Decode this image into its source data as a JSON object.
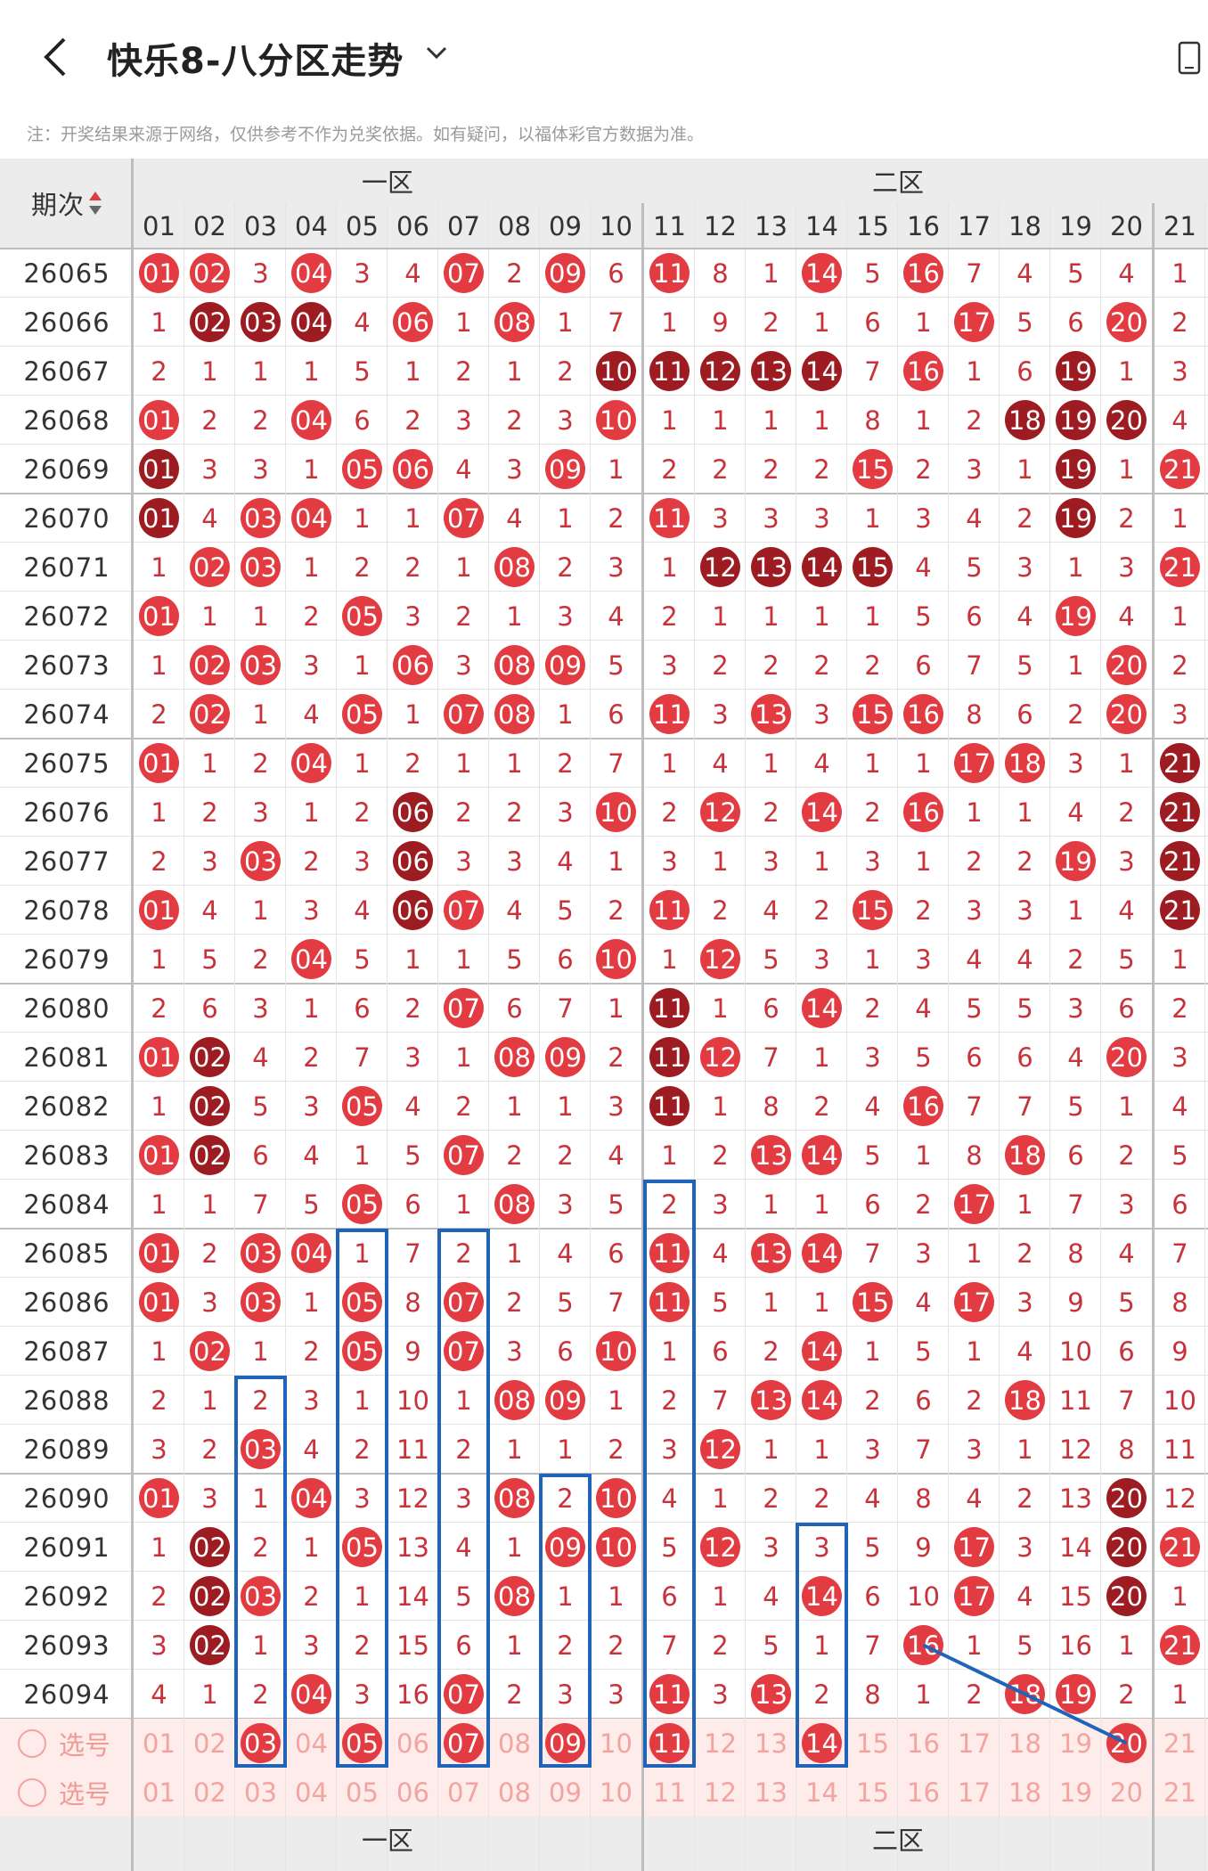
{
  "header": {
    "title": "快乐8-八分区走势",
    "notice": "注：开奖结果来源于网络，仅供参考不作为兑奖依据。如有疑问，以福体彩官方数据为准。"
  },
  "table": {
    "period_header": "期次",
    "zones": [
      "一区",
      "二区"
    ],
    "columns": [
      "01",
      "02",
      "03",
      "04",
      "05",
      "06",
      "07",
      "08",
      "09",
      "10",
      "11",
      "12",
      "13",
      "14",
      "15",
      "16",
      "17",
      "18",
      "19",
      "20",
      "21"
    ],
    "rows": [
      {
        "period": "26065",
        "cells": [
          "r:01",
          "r:02",
          "3",
          "r:04",
          "3",
          "4",
          "r:07",
          "2",
          "r:09",
          "6",
          "r:11",
          "8",
          "1",
          "r:14",
          "5",
          "r:16",
          "7",
          "4",
          "5",
          "4",
          "1"
        ]
      },
      {
        "period": "26066",
        "cells": [
          "1",
          "d:02",
          "d:03",
          "d:04",
          "4",
          "r:06",
          "1",
          "r:08",
          "1",
          "7",
          "1",
          "9",
          "2",
          "1",
          "6",
          "1",
          "r:17",
          "5",
          "6",
          "r:20",
          "2"
        ]
      },
      {
        "period": "26067",
        "cells": [
          "2",
          "1",
          "1",
          "1",
          "5",
          "1",
          "2",
          "1",
          "2",
          "d:10",
          "d:11",
          "d:12",
          "d:13",
          "d:14",
          "7",
          "r:16",
          "1",
          "6",
          "d:19",
          "1",
          "3"
        ]
      },
      {
        "period": "26068",
        "cells": [
          "r:01",
          "2",
          "2",
          "r:04",
          "6",
          "2",
          "3",
          "2",
          "3",
          "r:10",
          "1",
          "1",
          "1",
          "1",
          "8",
          "1",
          "2",
          "d:18",
          "d:19",
          "d:20",
          "4"
        ]
      },
      {
        "period": "26069",
        "cells": [
          "d:01",
          "3",
          "3",
          "1",
          "r:05",
          "r:06",
          "4",
          "3",
          "r:09",
          "1",
          "2",
          "2",
          "2",
          "2",
          "r:15",
          "2",
          "3",
          "1",
          "d:19",
          "1",
          "r:21"
        ]
      },
      {
        "period": "26070",
        "cells": [
          "d:01",
          "4",
          "r:03",
          "r:04",
          "1",
          "1",
          "r:07",
          "4",
          "1",
          "2",
          "r:11",
          "3",
          "3",
          "3",
          "1",
          "3",
          "4",
          "2",
          "d:19",
          "2",
          "1"
        ]
      },
      {
        "period": "26071",
        "cells": [
          "1",
          "r:02",
          "r:03",
          "1",
          "2",
          "2",
          "1",
          "r:08",
          "2",
          "3",
          "1",
          "d:12",
          "d:13",
          "d:14",
          "d:15",
          "4",
          "5",
          "3",
          "1",
          "3",
          "r:21"
        ]
      },
      {
        "period": "26072",
        "cells": [
          "r:01",
          "1",
          "1",
          "2",
          "r:05",
          "3",
          "2",
          "1",
          "3",
          "4",
          "2",
          "1",
          "1",
          "1",
          "1",
          "5",
          "6",
          "4",
          "r:19",
          "4",
          "1"
        ]
      },
      {
        "period": "26073",
        "cells": [
          "1",
          "r:02",
          "r:03",
          "3",
          "1",
          "r:06",
          "3",
          "r:08",
          "r:09",
          "5",
          "3",
          "2",
          "2",
          "2",
          "2",
          "6",
          "7",
          "5",
          "1",
          "r:20",
          "2"
        ]
      },
      {
        "period": "26074",
        "cells": [
          "2",
          "r:02",
          "1",
          "4",
          "r:05",
          "1",
          "r:07",
          "r:08",
          "1",
          "6",
          "r:11",
          "3",
          "r:13",
          "3",
          "r:15",
          "r:16",
          "8",
          "6",
          "2",
          "r:20",
          "3"
        ]
      },
      {
        "period": "26075",
        "cells": [
          "r:01",
          "1",
          "2",
          "r:04",
          "1",
          "2",
          "1",
          "1",
          "2",
          "7",
          "1",
          "4",
          "1",
          "4",
          "1",
          "1",
          "r:17",
          "r:18",
          "3",
          "1",
          "d:21"
        ]
      },
      {
        "period": "26076",
        "cells": [
          "1",
          "2",
          "3",
          "1",
          "2",
          "d:06",
          "2",
          "2",
          "3",
          "r:10",
          "2",
          "r:12",
          "2",
          "r:14",
          "2",
          "r:16",
          "1",
          "1",
          "4",
          "2",
          "d:21"
        ]
      },
      {
        "period": "26077",
        "cells": [
          "2",
          "3",
          "r:03",
          "2",
          "3",
          "d:06",
          "3",
          "3",
          "4",
          "1",
          "3",
          "1",
          "3",
          "1",
          "3",
          "1",
          "2",
          "2",
          "r:19",
          "3",
          "d:21"
        ]
      },
      {
        "period": "26078",
        "cells": [
          "r:01",
          "4",
          "1",
          "3",
          "4",
          "d:06",
          "r:07",
          "4",
          "5",
          "2",
          "r:11",
          "2",
          "4",
          "2",
          "r:15",
          "2",
          "3",
          "3",
          "1",
          "4",
          "d:21"
        ]
      },
      {
        "period": "26079",
        "cells": [
          "1",
          "5",
          "2",
          "r:04",
          "5",
          "1",
          "1",
          "5",
          "6",
          "r:10",
          "1",
          "r:12",
          "5",
          "3",
          "1",
          "3",
          "4",
          "4",
          "2",
          "5",
          "1"
        ]
      },
      {
        "period": "26080",
        "cells": [
          "2",
          "6",
          "3",
          "1",
          "6",
          "2",
          "r:07",
          "6",
          "7",
          "1",
          "d:11",
          "1",
          "6",
          "r:14",
          "2",
          "4",
          "5",
          "5",
          "3",
          "6",
          "2"
        ]
      },
      {
        "period": "26081",
        "cells": [
          "r:01",
          "d:02",
          "4",
          "2",
          "7",
          "3",
          "1",
          "r:08",
          "r:09",
          "2",
          "d:11",
          "r:12",
          "7",
          "1",
          "3",
          "5",
          "6",
          "6",
          "4",
          "r:20",
          "3"
        ]
      },
      {
        "period": "26082",
        "cells": [
          "1",
          "d:02",
          "5",
          "3",
          "r:05",
          "4",
          "2",
          "1",
          "1",
          "3",
          "d:11",
          "1",
          "8",
          "2",
          "4",
          "r:16",
          "7",
          "7",
          "5",
          "1",
          "4"
        ]
      },
      {
        "period": "26083",
        "cells": [
          "r:01",
          "d:02",
          "6",
          "4",
          "1",
          "5",
          "r:07",
          "2",
          "2",
          "4",
          "1",
          "2",
          "r:13",
          "r:14",
          "5",
          "1",
          "8",
          "r:18",
          "6",
          "2",
          "5"
        ]
      },
      {
        "period": "26084",
        "cells": [
          "1",
          "1",
          "7",
          "5",
          "r:05",
          "6",
          "1",
          "r:08",
          "3",
          "5",
          "2",
          "3",
          "1",
          "1",
          "6",
          "2",
          "r:17",
          "1",
          "7",
          "3",
          "6"
        ]
      },
      {
        "period": "26085",
        "cells": [
          "r:01",
          "2",
          "r:03",
          "r:04",
          "1",
          "7",
          "2",
          "1",
          "4",
          "6",
          "r:11",
          "4",
          "r:13",
          "r:14",
          "7",
          "3",
          "1",
          "2",
          "8",
          "4",
          "7"
        ]
      },
      {
        "period": "26086",
        "cells": [
          "r:01",
          "3",
          "r:03",
          "1",
          "r:05",
          "8",
          "r:07",
          "2",
          "5",
          "7",
          "r:11",
          "5",
          "1",
          "1",
          "r:15",
          "4",
          "r:17",
          "3",
          "9",
          "5",
          "8"
        ]
      },
      {
        "period": "26087",
        "cells": [
          "1",
          "r:02",
          "1",
          "2",
          "r:05",
          "9",
          "r:07",
          "3",
          "6",
          "r:10",
          "1",
          "6",
          "2",
          "r:14",
          "1",
          "5",
          "1",
          "4",
          "10",
          "6",
          "9"
        ]
      },
      {
        "period": "26088",
        "cells": [
          "2",
          "1",
          "2",
          "3",
          "1",
          "10",
          "1",
          "r:08",
          "r:09",
          "1",
          "2",
          "7",
          "r:13",
          "r:14",
          "2",
          "6",
          "2",
          "r:18",
          "11",
          "7",
          "10"
        ]
      },
      {
        "period": "26089",
        "cells": [
          "3",
          "2",
          "r:03",
          "4",
          "2",
          "11",
          "2",
          "1",
          "1",
          "2",
          "3",
          "r:12",
          "1",
          "1",
          "3",
          "7",
          "3",
          "1",
          "12",
          "8",
          "11"
        ]
      },
      {
        "period": "26090",
        "cells": [
          "r:01",
          "3",
          "1",
          "r:04",
          "3",
          "12",
          "3",
          "r:08",
          "2",
          "r:10",
          "4",
          "1",
          "2",
          "2",
          "4",
          "8",
          "4",
          "2",
          "13",
          "d:20",
          "12"
        ]
      },
      {
        "period": "26091",
        "cells": [
          "1",
          "d:02",
          "2",
          "1",
          "r:05",
          "13",
          "4",
          "1",
          "r:09",
          "r:10",
          "5",
          "r:12",
          "3",
          "3",
          "5",
          "9",
          "r:17",
          "3",
          "14",
          "d:20",
          "r:21"
        ]
      },
      {
        "period": "26092",
        "cells": [
          "2",
          "d:02",
          "r:03",
          "2",
          "1",
          "14",
          "5",
          "r:08",
          "1",
          "1",
          "6",
          "1",
          "4",
          "r:14",
          "6",
          "10",
          "r:17",
          "4",
          "15",
          "d:20",
          "1"
        ]
      },
      {
        "period": "26093",
        "cells": [
          "3",
          "d:02",
          "1",
          "3",
          "2",
          "15",
          "6",
          "1",
          "2",
          "2",
          "7",
          "2",
          "5",
          "1",
          "7",
          "r:16",
          "1",
          "5",
          "16",
          "1",
          "r:21"
        ]
      },
      {
        "period": "26094",
        "cells": [
          "4",
          "1",
          "2",
          "r:04",
          "3",
          "16",
          "r:07",
          "2",
          "3",
          "3",
          "r:11",
          "3",
          "r:13",
          "2",
          "8",
          "1",
          "2",
          "r:18",
          "r:19",
          "2",
          "1"
        ]
      }
    ],
    "select_rows": [
      {
        "label": "选号",
        "cells": [
          "01",
          "02",
          "r:03",
          "04",
          "r:05",
          "06",
          "r:07",
          "08",
          "r:09",
          "10",
          "r:11",
          "12",
          "13",
          "r:14",
          "15",
          "16",
          "17",
          "18",
          "19",
          "r:20",
          "21"
        ]
      },
      {
        "label": "选号",
        "cells": [
          "01",
          "02",
          "03",
          "04",
          "05",
          "06",
          "07",
          "08",
          "09",
          "10",
          "11",
          "12",
          "13",
          "14",
          "15",
          "16",
          "17",
          "18",
          "19",
          "20",
          "21"
        ]
      }
    ]
  },
  "colors": {
    "hot": "#e33b42",
    "dark": "#9c1c22",
    "miss": "#c8323a",
    "box": "#1f64b8"
  }
}
